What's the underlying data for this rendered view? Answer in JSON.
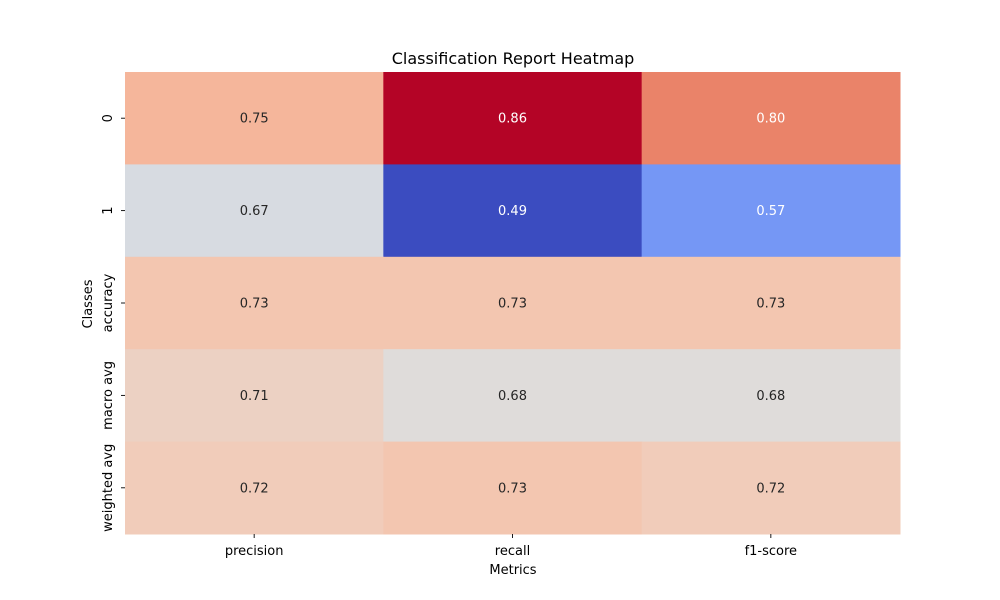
{
  "chart_data": {
    "type": "heatmap",
    "title": "Classification Report Heatmap",
    "xlabel": "Metrics",
    "ylabel": "Classes",
    "columns": [
      "precision",
      "recall",
      "f1-score"
    ],
    "rows": [
      "0",
      "1",
      "accuracy",
      "macro avg",
      "weighted avg"
    ],
    "values": [
      [
        0.75,
        0.86,
        0.8
      ],
      [
        0.67,
        0.49,
        0.57
      ],
      [
        0.73,
        0.73,
        0.73
      ],
      [
        0.71,
        0.68,
        0.68
      ],
      [
        0.72,
        0.73,
        0.72
      ]
    ],
    "value_format": "0.00",
    "colormap": "coolwarm",
    "vmin": 0.49,
    "vmax": 0.86,
    "colorbar": false,
    "grid": false
  }
}
